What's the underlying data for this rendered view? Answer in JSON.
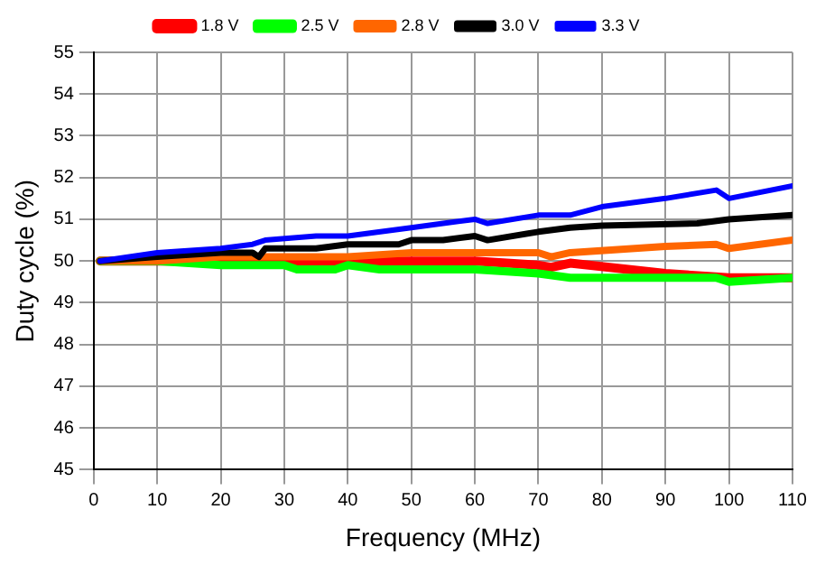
{
  "chart_data": {
    "type": "line",
    "xlabel": "Frequency (MHz)",
    "ylabel": "Duty cycle (%)",
    "xlim": [
      0,
      110
    ],
    "xticks": [
      0,
      10,
      20,
      30,
      40,
      50,
      60,
      70,
      80,
      90,
      100,
      110
    ],
    "ylim": [
      45,
      55
    ],
    "yticks": [
      45,
      46,
      47,
      48,
      49,
      50,
      51,
      52,
      53,
      54,
      55
    ],
    "grid": true,
    "legend": "top",
    "marker": "none",
    "line_style": "solid",
    "series": [
      {
        "name": "1.8 V",
        "color": "#ff0000",
        "x": [
          1,
          10,
          20,
          30,
          40,
          50,
          60,
          70,
          72,
          75,
          90,
          100,
          110
        ],
        "values": [
          50,
          50,
          50,
          50,
          50,
          50,
          50,
          49.9,
          49.85,
          49.95,
          49.7,
          49.6,
          49.6
        ]
      },
      {
        "name": "2.5 V",
        "color": "#00ff00",
        "x": [
          1,
          10,
          20,
          25,
          30,
          32,
          38,
          40,
          45,
          50,
          60,
          70,
          75,
          98,
          100,
          110
        ],
        "values": [
          50,
          50,
          49.9,
          49.9,
          49.9,
          49.8,
          49.8,
          49.9,
          49.8,
          49.8,
          49.8,
          49.7,
          49.6,
          49.6,
          49.5,
          49.6
        ]
      },
      {
        "name": "2.8 V",
        "color": "#ff6600",
        "x": [
          1,
          10,
          20,
          30,
          40,
          50,
          60,
          70,
          72,
          75,
          90,
          98,
          100,
          110
        ],
        "values": [
          50,
          50,
          50.1,
          50.1,
          50.1,
          50.2,
          50.2,
          50.2,
          50.1,
          50.2,
          50.35,
          50.4,
          50.3,
          50.5
        ]
      },
      {
        "name": "3.0 V",
        "color": "#000000",
        "x": [
          1,
          10,
          20,
          25,
          26,
          27,
          35,
          40,
          48,
          50,
          55,
          60,
          62,
          70,
          75,
          80,
          95,
          100,
          110
        ],
        "values": [
          50,
          50.1,
          50.2,
          50.2,
          50.1,
          50.3,
          50.3,
          50.4,
          50.4,
          50.5,
          50.5,
          50.6,
          50.5,
          50.7,
          50.8,
          50.85,
          50.9,
          51,
          51.1
        ]
      },
      {
        "name": "3.3 V",
        "color": "#0000ff",
        "x": [
          1,
          10,
          20,
          25,
          27,
          35,
          40,
          50,
          55,
          60,
          62,
          70,
          75,
          80,
          90,
          98,
          100,
          110
        ],
        "values": [
          50,
          50.2,
          50.3,
          50.4,
          50.5,
          50.6,
          50.6,
          50.8,
          50.9,
          51,
          50.9,
          51.1,
          51.1,
          51.3,
          51.5,
          51.7,
          51.5,
          51.8
        ]
      }
    ]
  }
}
